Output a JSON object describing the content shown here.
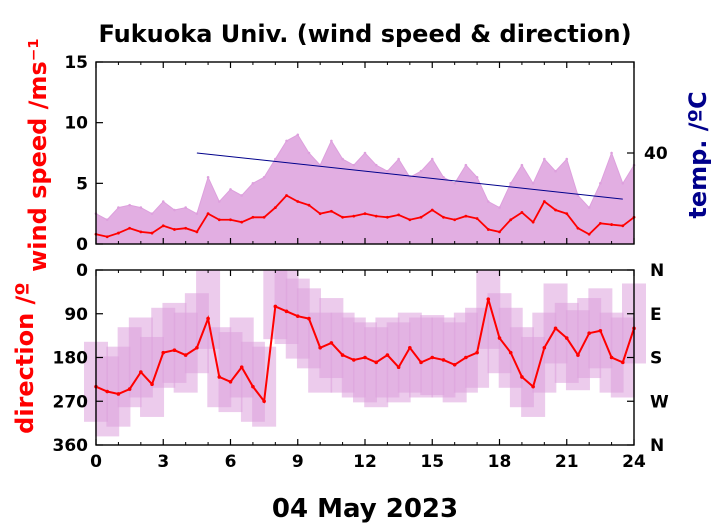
{
  "chart_data": [
    {
      "type": "line",
      "title": "Fukuoka Univ. (wind speed & direction)",
      "ylabel": "wind speed /ms⁻¹",
      "y2label": "temp. /ºC",
      "xlim": [
        0,
        24
      ],
      "ylim": [
        0,
        15
      ],
      "yticks": [
        0,
        5,
        10,
        15
      ],
      "xticks": [
        0,
        3,
        6,
        9,
        12,
        15,
        18,
        21,
        24
      ],
      "y2ticks": [
        {
          "label": "40",
          "at": 7.5
        }
      ],
      "grid": false,
      "colors": {
        "mean": "#ff0000",
        "gust": "#dda0dd",
        "temp": "#00008b"
      },
      "series": [
        {
          "name": "",
          "role": "mean wind speed",
          "x": [
            0,
            0.5,
            1,
            1.5,
            2,
            2.5,
            3,
            3.5,
            4,
            4.5,
            5,
            5.5,
            6,
            6.5,
            7,
            7.5,
            8,
            8.5,
            9,
            9.5,
            10,
            10.5,
            11,
            11.5,
            12,
            12.5,
            13,
            13.5,
            14,
            14.5,
            15,
            15.5,
            16,
            16.5,
            17,
            17.5,
            18,
            18.5,
            19,
            19.5,
            20,
            20.5,
            21,
            21.5,
            22,
            22.5,
            23,
            23.5,
            24
          ],
          "y": [
            0.8,
            0.6,
            0.9,
            1.3,
            1.0,
            0.9,
            1.5,
            1.2,
            1.3,
            1.0,
            2.5,
            2.0,
            2.0,
            1.8,
            2.2,
            2.2,
            3.0,
            4.0,
            3.5,
            3.2,
            2.5,
            2.7,
            2.2,
            2.3,
            2.5,
            2.3,
            2.2,
            2.4,
            2.0,
            2.2,
            2.8,
            2.2,
            2.0,
            2.3,
            2.1,
            1.2,
            1.0,
            2.0,
            2.6,
            1.8,
            3.5,
            2.8,
            2.5,
            1.3,
            0.8,
            1.7,
            1.6,
            1.5,
            2.2
          ]
        },
        {
          "name": "",
          "role": "max wind speed (gust)",
          "x": [
            0,
            0.5,
            1,
            1.5,
            2,
            2.5,
            3,
            3.5,
            4,
            4.5,
            5,
            5.5,
            6,
            6.5,
            7,
            7.5,
            8,
            8.5,
            9,
            9.5,
            10,
            10.5,
            11,
            11.5,
            12,
            12.5,
            13,
            13.5,
            14,
            14.5,
            15,
            15.5,
            16,
            16.5,
            17,
            17.5,
            18,
            18.5,
            19,
            19.5,
            20,
            20.5,
            21,
            21.5,
            22,
            22.5,
            23,
            23.5,
            24
          ],
          "y": [
            2.5,
            2.0,
            3.0,
            3.2,
            3.0,
            2.5,
            3.5,
            2.8,
            3.0,
            2.5,
            5.5,
            3.5,
            4.5,
            4.0,
            5.0,
            5.5,
            7.0,
            8.5,
            9.0,
            7.5,
            6.5,
            8.5,
            7.0,
            6.5,
            7.5,
            6.5,
            6.0,
            7.0,
            5.5,
            6.0,
            7.0,
            5.5,
            5.0,
            6.5,
            5.5,
            3.5,
            3.0,
            5.0,
            6.5,
            5.0,
            7.0,
            6.0,
            7.0,
            4.0,
            3.0,
            5.0,
            7.5,
            5.0,
            6.5
          ]
        },
        {
          "name": "",
          "role": "temperature",
          "x": [
            4.5,
            23.5
          ],
          "y": [
            7.5,
            3.7
          ]
        }
      ]
    },
    {
      "type": "scatter",
      "ylabel": "direction /º",
      "xlabel": "04 May 2023",
      "xlim": [
        0,
        24
      ],
      "ylim": [
        360,
        0
      ],
      "yticks": [
        0,
        90,
        180,
        270,
        360
      ],
      "xticks": [
        0,
        3,
        6,
        9,
        12,
        15,
        18,
        21,
        24
      ],
      "y2ticks": [
        {
          "label": "N",
          "at": 0
        },
        {
          "label": "E",
          "at": 90
        },
        {
          "label": "S",
          "at": 180
        },
        {
          "label": "W",
          "at": 270
        },
        {
          "label": "N",
          "at": 360
        }
      ],
      "grid": false,
      "colors": {
        "mean": "#ff0000",
        "spread": "#dda0dd"
      },
      "series": [
        {
          "name": "",
          "role": "mean wind direction",
          "x": [
            0,
            0.5,
            1,
            1.5,
            2,
            2.5,
            3,
            3.5,
            4,
            4.5,
            5,
            5.5,
            6,
            6.5,
            7,
            7.5,
            8,
            8.5,
            9,
            9.5,
            10,
            10.5,
            11,
            11.5,
            12,
            12.5,
            13,
            13.5,
            14,
            14.5,
            15,
            15.5,
            16,
            16.5,
            17,
            17.5,
            18,
            18.5,
            19,
            19.5,
            20,
            20.5,
            21,
            21.5,
            22,
            22.5,
            23,
            23.5,
            24
          ],
          "y": [
            240,
            250,
            255,
            245,
            210,
            235,
            170,
            165,
            175,
            160,
            100,
            220,
            230,
            200,
            240,
            270,
            75,
            85,
            95,
            100,
            160,
            150,
            175,
            185,
            180,
            190,
            175,
            200,
            160,
            190,
            180,
            185,
            195,
            180,
            170,
            60,
            140,
            170,
            220,
            240,
            160,
            120,
            140,
            175,
            130,
            125,
            180,
            190,
            120
          ]
        },
        {
          "name": "",
          "role": "wind direction spread",
          "x": [
            0,
            0.5,
            1,
            1.5,
            2,
            2.5,
            3,
            3.5,
            4,
            4.5,
            5,
            5.5,
            6,
            6.5,
            7,
            7.5,
            8,
            8.5,
            9,
            9.5,
            10,
            10.5,
            11,
            11.5,
            12,
            12.5,
            13,
            13.5,
            14,
            14.5,
            15,
            15.5,
            16,
            16.5,
            17,
            17.5,
            18,
            18.5,
            19,
            19.5,
            20,
            20.5,
            21,
            21.5,
            22,
            22.5,
            23,
            23.5,
            24
          ],
          "y": [
            230,
            260,
            240,
            200,
            180,
            220,
            160,
            150,
            170,
            130,
            80,
            200,
            210,
            180,
            230,
            240,
            60,
            70,
            100,
            120,
            170,
            140,
            170,
            180,
            190,
            200,
            180,
            190,
            170,
            180,
            175,
            180,
            190,
            170,
            160,
            80,
            130,
            160,
            200,
            220,
            170,
            110,
            150,
            165,
            140,
            120,
            170,
            180,
            110
          ]
        }
      ]
    }
  ]
}
